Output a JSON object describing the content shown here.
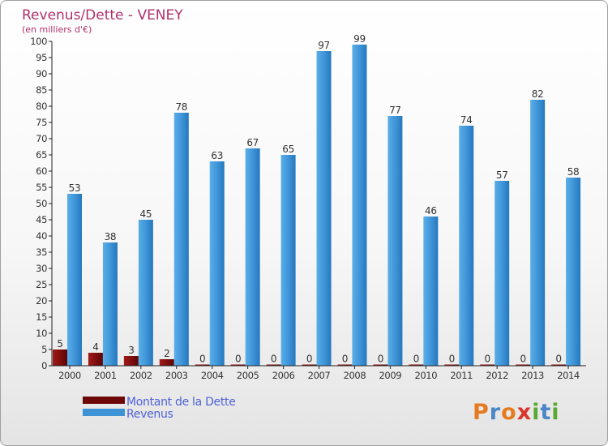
{
  "chart_data": {
    "type": "bar",
    "title": "Revenus/Dette - VENEY",
    "subtitle": "(en milliers d'€)",
    "categories": [
      "2000",
      "2001",
      "2002",
      "2003",
      "2004",
      "2005",
      "2006",
      "2007",
      "2008",
      "2009",
      "2010",
      "2011",
      "2012",
      "2013",
      "2014"
    ],
    "series": [
      {
        "name": "Montant de la Dette",
        "values": [
          5,
          4,
          3,
          2,
          0,
          0,
          0,
          0,
          0,
          0,
          0,
          0,
          0,
          0,
          0
        ],
        "color": "#8b0d0d"
      },
      {
        "name": "Revenus",
        "values": [
          53,
          38,
          45,
          78,
          63,
          67,
          65,
          97,
          99,
          77,
          46,
          74,
          57,
          82,
          58
        ],
        "color": "#3d93d6"
      }
    ],
    "ylim": [
      0,
      100
    ],
    "ytick_step": 5,
    "grid": false,
    "legend": "bottom-left",
    "xlabel": "",
    "ylabel": ""
  },
  "logo": {
    "text": "Proxiti",
    "colors": [
      "#e47b1f",
      "#4a86c8",
      "#5aa832",
      "#d9352c"
    ]
  }
}
